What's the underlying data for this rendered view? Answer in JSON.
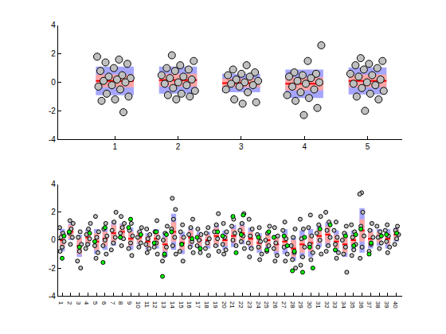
{
  "chart_data": [
    {
      "type": "scatter",
      "x": [
        1,
        2,
        3,
        4,
        5
      ],
      "xlim": [
        0.1,
        5.55
      ],
      "xticks": [
        1,
        2,
        3,
        4,
        5
      ],
      "ylim": [
        -4,
        4
      ],
      "yticks": [
        -4,
        -2,
        0,
        2,
        4
      ],
      "grid": false,
      "series": [
        {
          "color": "#c0c0c0",
          "marker": "circle",
          "values": [
            [
              1.8,
              1.6,
              1.4,
              1.3,
              1.0,
              0.8,
              0.5,
              0.4,
              0.3,
              0.2,
              0.1,
              0.0,
              -0.2,
              -0.3,
              -0.5,
              -0.8,
              -1.0,
              -1.2,
              -1.3,
              -2.1
            ],
            [
              1.9,
              1.5,
              1.2,
              1.0,
              0.9,
              0.8,
              0.5,
              0.4,
              0.3,
              0.2,
              0.0,
              -0.1,
              -0.2,
              -0.4,
              -0.6,
              -0.8,
              -0.9,
              -1.0,
              -1.2
            ],
            [
              1.2,
              0.9,
              0.7,
              0.6,
              0.5,
              0.4,
              0.2,
              0.1,
              0.0,
              -0.1,
              -0.2,
              -0.3,
              -0.5,
              -0.7,
              -1.2,
              -1.4,
              -1.5
            ],
            [
              2.6,
              1.5,
              0.7,
              0.6,
              0.5,
              0.4,
              0.3,
              0.1,
              0.0,
              -0.1,
              -0.3,
              -0.5,
              -0.7,
              -0.9,
              -1.1,
              -1.3,
              -1.8,
              -2.3
            ],
            [
              1.7,
              1.5,
              1.3,
              1.2,
              1.0,
              0.9,
              0.6,
              0.5,
              0.4,
              0.2,
              0.0,
              -0.1,
              -0.2,
              -0.4,
              -0.6,
              -0.8,
              -1.0,
              -1.2,
              -2.0
            ]
          ]
        }
      ],
      "mean": [
        0.1,
        0.15,
        -0.05,
        -0.1,
        0.1
      ],
      "ci": [
        0.45,
        0.45,
        0.3,
        0.45,
        0.45
      ],
      "sd": [
        1.0,
        0.95,
        0.65,
        1.0,
        0.95
      ]
    },
    {
      "type": "scatter",
      "x": [
        1,
        2,
        3,
        4,
        5,
        6,
        7,
        8,
        9,
        10,
        11,
        12,
        13,
        14,
        15,
        16,
        17,
        18,
        19,
        20,
        21,
        22,
        23,
        24,
        25,
        26,
        27,
        28,
        29,
        30,
        31,
        32,
        33,
        34,
        35,
        36,
        37,
        38,
        39,
        40
      ],
      "xlim": [
        0.5,
        40.7
      ],
      "xticks": [
        1,
        2,
        3,
        4,
        5,
        6,
        7,
        8,
        9,
        10,
        11,
        12,
        13,
        14,
        15,
        16,
        17,
        18,
        19,
        20,
        21,
        22,
        23,
        24,
        25,
        26,
        27,
        28,
        29,
        30,
        31,
        32,
        33,
        34,
        35,
        36,
        37,
        38,
        39,
        40
      ],
      "ylim": [
        -4,
        4
      ],
      "yticks": [
        -4,
        -2,
        0,
        2,
        4
      ],
      "grid": false,
      "series": [
        {
          "color": "#c0c0c0",
          "marker": "circle",
          "values": [
            [
              0.9,
              0.5,
              0.2,
              -0.1,
              -0.5,
              -0.8
            ],
            [
              1.4,
              1.2,
              0.8,
              0.5,
              0.2,
              -0.3
            ],
            [
              0.6,
              0.2,
              -0.3,
              -0.8,
              -1.5,
              -2.0
            ],
            [
              1.2,
              0.8,
              0.4,
              0.1,
              -0.3,
              -0.6
            ],
            [
              1.7,
              0.6,
              0.2,
              -0.4,
              -0.9,
              -1.3
            ],
            [
              1.2,
              0.8,
              0.3,
              0.0,
              -0.4,
              -1.0
            ],
            [
              2.0,
              1.3,
              0.7,
              0.2,
              -0.2,
              -0.7
            ],
            [
              1.7,
              1.2,
              0.9,
              0.5,
              0.1,
              -0.4
            ],
            [
              1.2,
              0.7,
              0.3,
              -0.2,
              -0.6,
              -1.1
            ],
            [
              0.9,
              0.6,
              0.2,
              -0.2,
              -0.5
            ],
            [
              0.8,
              0.4,
              0.1,
              -0.3,
              -0.6,
              -0.9
            ],
            [
              1.4,
              0.6,
              0.2,
              -0.2,
              -0.5,
              -1.0
            ],
            [
              1.0,
              0.5,
              0.0,
              -0.5,
              -1.1,
              -1.5
            ],
            [
              3.0,
              2.2,
              1.5,
              0.8,
              0.2,
              -0.4,
              -1.0
            ],
            [
              1.1,
              0.6,
              0.2,
              -0.3,
              -0.8,
              -1.5
            ],
            [
              1.5,
              0.9,
              0.4,
              -0.1,
              -0.5,
              -0.9
            ],
            [
              0.8,
              0.4,
              0.0,
              -0.4,
              -0.9
            ],
            [
              0.9,
              0.5,
              0.1,
              -0.2,
              -0.6,
              -1.1
            ],
            [
              1.9,
              1.1,
              0.6,
              0.1,
              -0.4,
              -0.8
            ],
            [
              1.2,
              0.6,
              0.2,
              -0.3,
              -0.7,
              -1.0
            ],
            [
              1.5,
              1.0,
              0.5,
              0.0,
              -0.4
            ],
            [
              1.9,
              1.2,
              0.7,
              0.3,
              -0.1,
              -0.6
            ],
            [
              1.5,
              0.8,
              0.3,
              -0.2,
              -0.6,
              -1.2
            ],
            [
              0.9,
              0.4,
              -0.1,
              -0.5,
              -1.0,
              -1.4
            ],
            [
              1.0,
              0.5,
              0.0,
              -0.4,
              -0.8
            ],
            [
              0.9,
              0.3,
              -0.2,
              -0.6,
              -1.1,
              -1.5
            ],
            [
              1.3,
              0.7,
              0.1,
              -0.5,
              -1.0,
              -1.5
            ],
            [
              0.8,
              0.2,
              -0.4,
              -0.9,
              -1.4,
              -2.0
            ],
            [
              1.5,
              0.8,
              0.1,
              -0.5,
              -1.2,
              -1.8
            ],
            [
              1.8,
              0.9,
              0.3,
              -0.3,
              -0.9,
              -1.4
            ],
            [
              1.7,
              1.1,
              0.5,
              0.0,
              -0.5,
              -1.0
            ],
            [
              2.0,
              1.3,
              0.7,
              0.2,
              -0.4,
              -0.8
            ],
            [
              1.3,
              0.7,
              0.2,
              -0.3,
              -0.9,
              -1.3
            ],
            [
              1.0,
              0.5,
              0.0,
              -0.5,
              -1.0,
              -2.3
            ],
            [
              1.1,
              0.6,
              0.2,
              -0.3,
              -0.7,
              -1.1
            ],
            [
              3.4,
              3.3,
              2.0,
              1.0,
              0.3,
              -0.5,
              -1.3
            ],
            [
              1.2,
              0.7,
              0.2,
              -0.3,
              -0.8
            ],
            [
              1.0,
              0.6,
              0.2,
              -0.2,
              -0.6
            ],
            [
              1.1,
              0.7,
              0.3,
              -0.1,
              -0.5,
              -0.9
            ],
            [
              1.0,
              0.7,
              0.4,
              0.1,
              -0.3
            ]
          ]
        },
        {
          "color": "#00ff00",
          "marker": "circle",
          "values": [
            [
              0.3,
              -1.3
            ],
            [
              0.6
            ],
            [
              -0.5
            ],
            [
              0.5
            ],
            [
              -0.1
            ],
            [
              0.9,
              -1.6
            ],
            [],
            [
              0.2
            ],
            [
              1.5,
              0.9
            ],
            [
              0.4
            ],
            [],
            [
              0.6,
              -0.2
            ],
            [
              0.4,
              -1.0,
              -2.6
            ],
            [
              0.6
            ],
            [
              -0.3
            ],
            [
              0.1
            ],
            [
              0.2,
              -0.6
            ],
            [],
            [
              0.6
            ],
            [
              0.3
            ],
            [
              1.7,
              -0.9
            ],
            [
              1.8,
              0.4
            ],
            [],
            [
              0.2
            ],
            [
              0.6,
              -0.7
            ],
            [
              0.2
            ],
            [
              0.3,
              -0.4
            ],
            [
              -0.8,
              -2.2
            ],
            [
              0.2,
              -2.3
            ],
            [
              -0.5,
              -2.0
            ],
            [
              0.8
            ],
            [
              1.1
            ],
            [
              -0.7
            ],
            [
              0.3
            ],
            [
              0.4,
              -0.4
            ],
            [
              0.8
            ],
            [
              -0.2,
              -1.0
            ],
            [
              0.3
            ],
            [
              0.4
            ],
            [
              0.5
            ]
          ]
        }
      ],
      "mean": [
        0.0,
        0.6,
        -0.4,
        0.2,
        -0.1,
        0.1,
        0.5,
        0.6,
        0.1,
        0.2,
        -0.1,
        0.1,
        -0.3,
        0.6,
        -0.2,
        0.2,
        0.0,
        0.0,
        0.3,
        0.0,
        0.3,
        0.5,
        0.1,
        -0.2,
        0.0,
        -0.3,
        -0.1,
        -0.6,
        -0.3,
        -0.2,
        0.3,
        0.4,
        -0.1,
        -0.3,
        0.0,
        0.7,
        0.1,
        0.2,
        0.1,
        0.4
      ],
      "ci": [
        0.5,
        0.5,
        0.6,
        0.4,
        0.6,
        0.5,
        0.6,
        0.5,
        0.5,
        0.4,
        0.4,
        0.5,
        0.5,
        0.7,
        0.5,
        0.5,
        0.4,
        0.4,
        0.6,
        0.4,
        0.5,
        0.5,
        0.5,
        0.5,
        0.4,
        0.5,
        0.5,
        0.6,
        0.6,
        0.6,
        0.5,
        0.6,
        0.5,
        0.6,
        0.4,
        0.8,
        0.5,
        0.4,
        0.4,
        0.4
      ],
      "sd": [
        0.8,
        0.6,
        0.8,
        0.6,
        0.9,
        0.8,
        0.9,
        0.6,
        0.8,
        0.5,
        0.6,
        0.7,
        0.9,
        1.3,
        0.8,
        0.7,
        0.6,
        0.6,
        0.8,
        0.7,
        0.8,
        0.8,
        0.8,
        0.7,
        0.6,
        0.7,
        0.9,
        0.9,
        1.0,
        1.0,
        0.8,
        0.9,
        0.8,
        0.9,
        0.7,
        1.6,
        0.7,
        0.6,
        0.7,
        0.5
      ]
    }
  ]
}
